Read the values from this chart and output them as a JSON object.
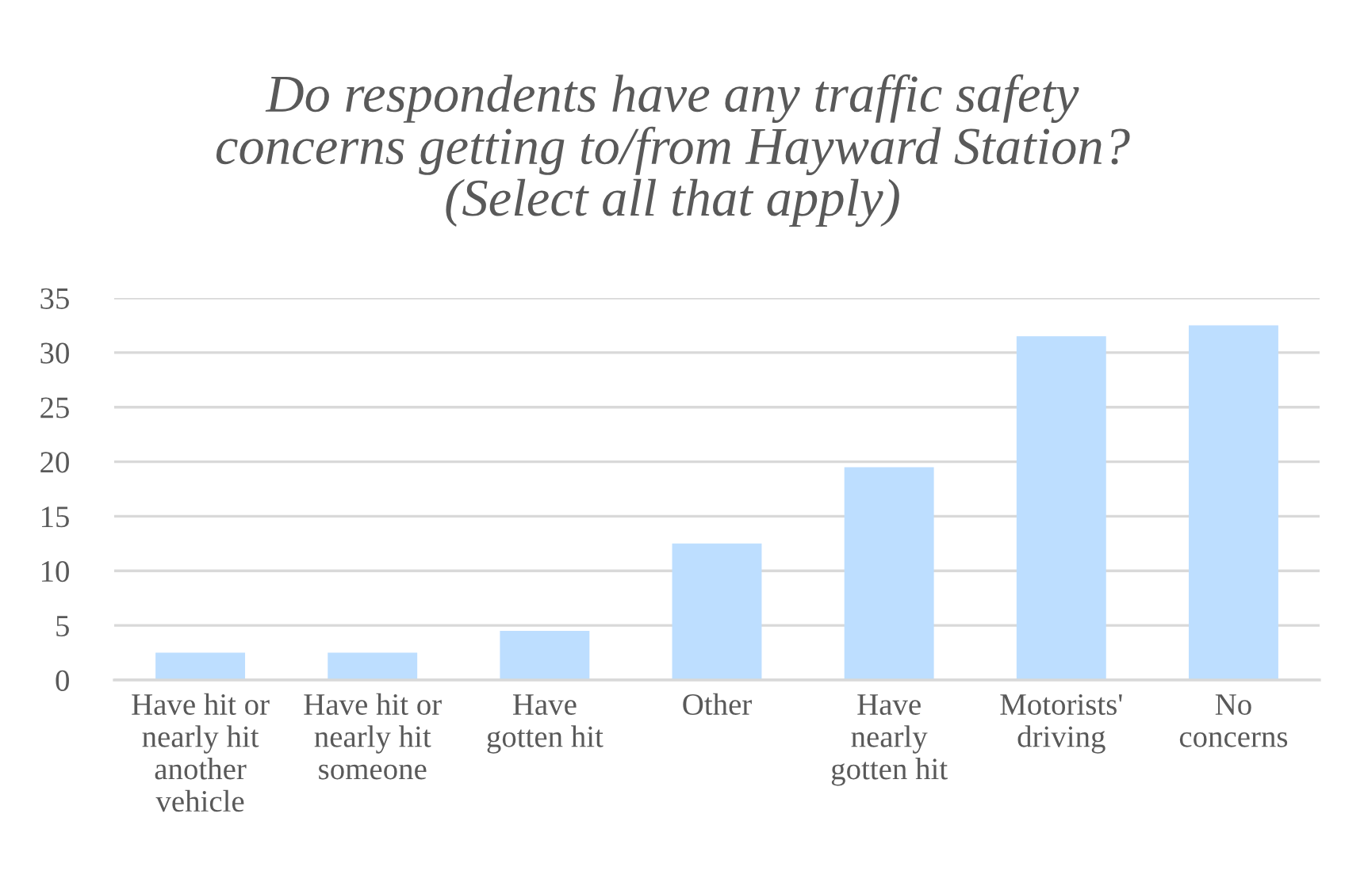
{
  "chart_data": {
    "type": "bar",
    "title": "Do respondents have any traffic safety\nconcerns getting to/from Hayward Station?\n(Select all that apply)",
    "categories": [
      "Have hit or\nnearly hit\nanother\nvehicle",
      "Have hit or\nnearly hit\nsomeone",
      "Have\ngotten hit",
      "Other",
      "Have\nnearly\ngotten hit",
      "Motorists'\ndriving",
      "No\nconcerns"
    ],
    "values": [
      2.5,
      2.5,
      4.5,
      12.5,
      19.5,
      31.5,
      32.5
    ],
    "color": "#bddeff",
    "ylim": [
      0,
      35
    ],
    "yticks": [
      0,
      5,
      10,
      15,
      20,
      25,
      30,
      35
    ],
    "grid": "y"
  }
}
